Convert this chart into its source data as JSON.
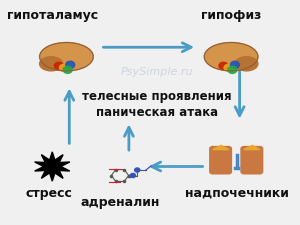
{
  "bg_color": "#f0f0f0",
  "title_text": "",
  "center_text_line1": "телесные проявления",
  "center_text_line2": "паническая атака",
  "labels": {
    "top_left": "гипоталамус",
    "top_right": "гипофиз",
    "bottom_left": "стресс",
    "bottom_center": "адреналин",
    "bottom_right": "надпочечники"
  },
  "arrow_color": "#4a9cc7",
  "arrow_positions": [
    {
      "from": [
        0.28,
        0.78
      ],
      "to": [
        0.65,
        0.78
      ],
      "direction": "right"
    },
    {
      "from": [
        0.78,
        0.72
      ],
      "to": [
        0.78,
        0.48
      ],
      "direction": "down"
    },
    {
      "from": [
        0.65,
        0.25
      ],
      "to": [
        0.38,
        0.25
      ],
      "direction": "left"
    },
    {
      "from": [
        0.22,
        0.32
      ],
      "to": [
        0.22,
        0.55
      ],
      "direction": "up"
    },
    {
      "from": [
        0.42,
        0.18
      ],
      "to": [
        0.42,
        0.36
      ],
      "direction": "up"
    }
  ],
  "watermark": "PsySimple.ru",
  "watermark_color": "#c0c8d8",
  "font_size_labels": 9,
  "font_size_center": 8.5
}
